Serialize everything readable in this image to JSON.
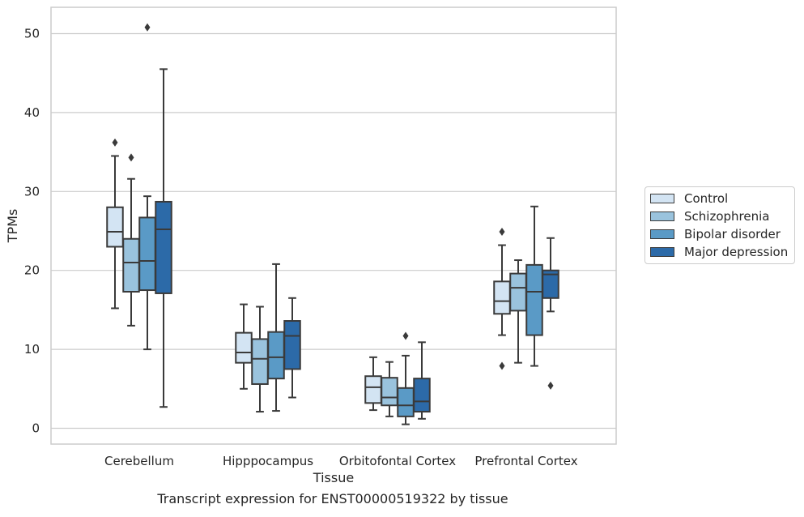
{
  "chart_data": {
    "type": "box",
    "title": "",
    "caption": "Transcript expression for ENST00000519322 by tissue",
    "xlabel": "Tissue",
    "ylabel": "TPMs",
    "ylim": [
      -2,
      53
    ],
    "yticks": [
      0,
      10,
      20,
      30,
      40,
      50
    ],
    "grid": "horizontal",
    "legend_position": "right",
    "categories": [
      "Cerebellum",
      "Hipppocampus",
      "Orbitofontal Cortex",
      "Prefrontal Cortex"
    ],
    "series": [
      {
        "name": "Control",
        "color": "#d3e4f3",
        "boxes": [
          {
            "whisker_low": 15.2,
            "q1": 23.0,
            "median": 24.9,
            "q3": 28.0,
            "whisker_high": 34.5,
            "outliers": [
              36.2
            ]
          },
          {
            "whisker_low": 5.0,
            "q1": 8.3,
            "median": 9.6,
            "q3": 12.1,
            "whisker_high": 15.7,
            "outliers": []
          },
          {
            "whisker_low": 2.3,
            "q1": 3.2,
            "median": 5.2,
            "q3": 6.6,
            "whisker_high": 9.0,
            "outliers": []
          },
          {
            "whisker_low": 11.8,
            "q1": 14.5,
            "median": 16.1,
            "q3": 18.6,
            "whisker_high": 23.2,
            "outliers": [
              24.9,
              7.9
            ]
          }
        ]
      },
      {
        "name": "Schizophrenia",
        "color": "#9ac3dd",
        "boxes": [
          {
            "whisker_low": 13.0,
            "q1": 17.3,
            "median": 21.0,
            "q3": 24.0,
            "whisker_high": 31.6,
            "outliers": [
              34.3
            ]
          },
          {
            "whisker_low": 2.1,
            "q1": 5.6,
            "median": 8.8,
            "q3": 11.3,
            "whisker_high": 15.4,
            "outliers": []
          },
          {
            "whisker_low": 1.5,
            "q1": 2.9,
            "median": 3.9,
            "q3": 6.4,
            "whisker_high": 8.4,
            "outliers": []
          },
          {
            "whisker_low": 8.3,
            "q1": 14.9,
            "median": 17.8,
            "q3": 19.6,
            "whisker_high": 21.3,
            "outliers": []
          }
        ]
      },
      {
        "name": "Bipolar disorder",
        "color": "#5a9ac6",
        "boxes": [
          {
            "whisker_low": 10.0,
            "q1": 17.5,
            "median": 21.2,
            "q3": 26.7,
            "whisker_high": 29.4,
            "outliers": [
              50.8
            ]
          },
          {
            "whisker_low": 2.2,
            "q1": 6.3,
            "median": 9.0,
            "q3": 12.2,
            "whisker_high": 20.8,
            "outliers": []
          },
          {
            "whisker_low": 0.5,
            "q1": 1.5,
            "median": 2.9,
            "q3": 5.1,
            "whisker_high": 9.2,
            "outliers": [
              11.7
            ]
          },
          {
            "whisker_low": 7.9,
            "q1": 11.8,
            "median": 17.3,
            "q3": 20.7,
            "whisker_high": 28.1,
            "outliers": []
          }
        ]
      },
      {
        "name": "Major depression",
        "color": "#2c6aa8",
        "boxes": [
          {
            "whisker_low": 2.7,
            "q1": 17.1,
            "median": 25.2,
            "q3": 28.7,
            "whisker_high": 45.5,
            "outliers": []
          },
          {
            "whisker_low": 3.9,
            "q1": 7.5,
            "median": 11.7,
            "q3": 13.6,
            "whisker_high": 16.5,
            "outliers": []
          },
          {
            "whisker_low": 1.2,
            "q1": 2.1,
            "median": 3.4,
            "q3": 6.3,
            "whisker_high": 10.9,
            "outliers": []
          },
          {
            "whisker_low": 14.8,
            "q1": 16.5,
            "median": 19.5,
            "q3": 20.0,
            "whisker_high": 24.1,
            "outliers": [
              5.4
            ]
          }
        ]
      }
    ]
  }
}
